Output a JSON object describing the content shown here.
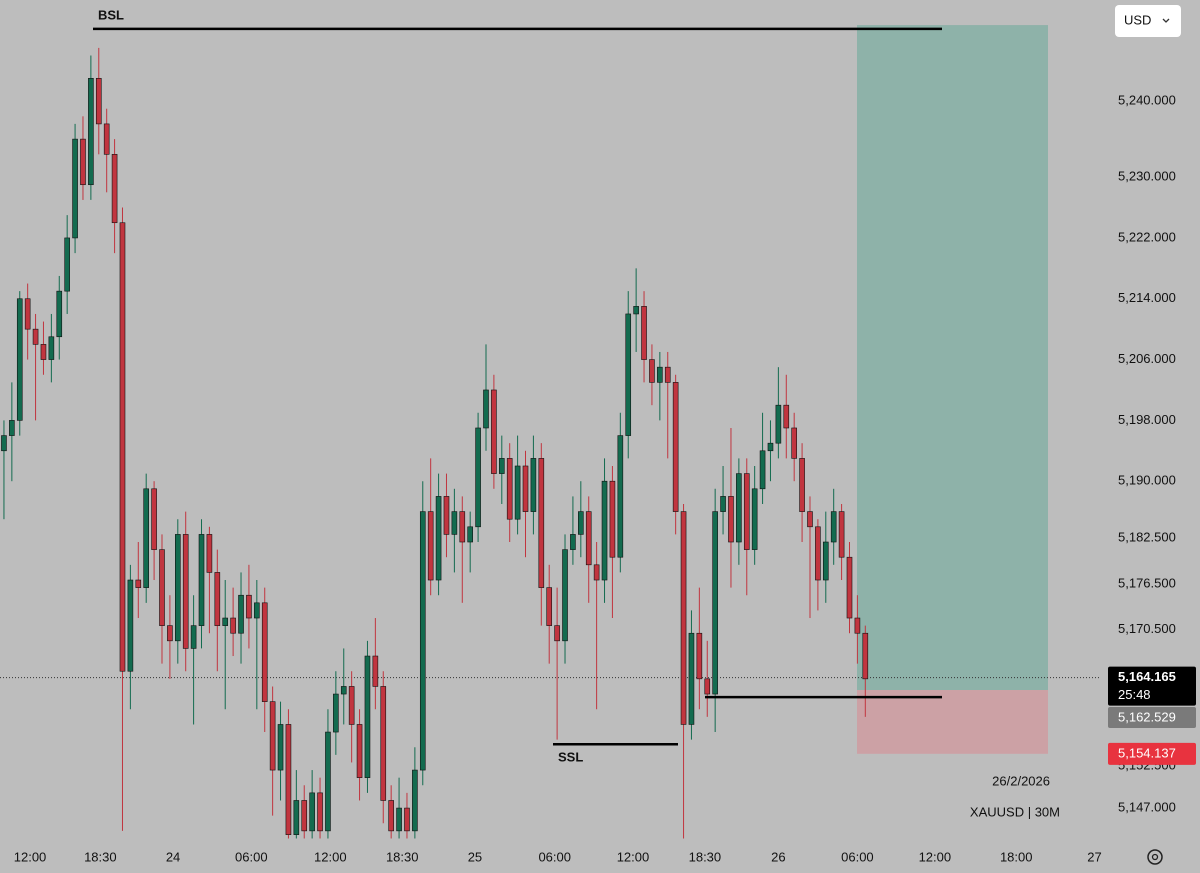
{
  "chart_data": {
    "type": "candlestick",
    "currency": "USD",
    "symbol": "XAUUSD | 30M",
    "date": "26/2/2026",
    "countdown": "25:48",
    "up_color": "#136b4f",
    "down_color": "#c1353f",
    "ylim": [
      5142.8,
      5253.3
    ],
    "yticks": [
      {
        "value": 5240,
        "label": "5,240.000"
      },
      {
        "value": 5230,
        "label": "5,230.000"
      },
      {
        "value": 5222,
        "label": "5,222.000"
      },
      {
        "value": 5214,
        "label": "5,214.000"
      },
      {
        "value": 5206,
        "label": "5,206.000"
      },
      {
        "value": 5198,
        "label": "5,198.000"
      },
      {
        "value": 5190,
        "label": "5,190.000"
      },
      {
        "value": 5182.5,
        "label": "5,182.500"
      },
      {
        "value": 5176.5,
        "label": "5,176.500"
      },
      {
        "value": 5170.5,
        "label": "5,170.500"
      },
      {
        "value": 5152.5,
        "label": "5,152.500"
      },
      {
        "value": 5147,
        "label": "5,147.000"
      }
    ],
    "xlim": [
      -0.5,
      138.7
    ],
    "xticks": [
      {
        "value": 3.3,
        "label": "12:00"
      },
      {
        "value": 12.2,
        "label": "18:30"
      },
      {
        "value": 21.4,
        "label": "24"
      },
      {
        "value": 31.3,
        "label": "06:00"
      },
      {
        "value": 41.3,
        "label": "12:00"
      },
      {
        "value": 50.4,
        "label": "18:30"
      },
      {
        "value": 59.6,
        "label": "25"
      },
      {
        "value": 69.7,
        "label": "06:00"
      },
      {
        "value": 79.6,
        "label": "12:00"
      },
      {
        "value": 88.7,
        "label": "18:30"
      },
      {
        "value": 98,
        "label": "26"
      },
      {
        "value": 108,
        "label": "06:00"
      },
      {
        "value": 117.8,
        "label": "12:00"
      },
      {
        "value": 128.1,
        "label": "18:00"
      },
      {
        "value": 138,
        "label": "27"
      }
    ],
    "candles": [
      [
        5194,
        5198,
        5185,
        5196
      ],
      [
        5196,
        5203,
        5190,
        5198
      ],
      [
        5198,
        5215,
        5196,
        5214
      ],
      [
        5214,
        5216,
        5206,
        5210
      ],
      [
        5210,
        5212,
        5198,
        5208
      ],
      [
        5208,
        5211,
        5204,
        5206
      ],
      [
        5206,
        5212,
        5203,
        5209
      ],
      [
        5209,
        5217,
        5206,
        5215
      ],
      [
        5215,
        5225,
        5212,
        5222
      ],
      [
        5222,
        5237,
        5220,
        5235
      ],
      [
        5235,
        5238,
        5227,
        5229
      ],
      [
        5229,
        5246,
        5227,
        5243
      ],
      [
        5243,
        5247,
        5233,
        5237
      ],
      [
        5237,
        5239,
        5228,
        5233
      ],
      [
        5233,
        5235,
        5220,
        5224
      ],
      [
        5224,
        5226,
        5144,
        5165
      ],
      [
        5165,
        5179,
        5160,
        5177
      ],
      [
        5177,
        5182,
        5172,
        5176
      ],
      [
        5176,
        5191,
        5174,
        5189
      ],
      [
        5189,
        5190,
        5177,
        5181
      ],
      [
        5181,
        5183,
        5166,
        5171
      ],
      [
        5171,
        5175,
        5164,
        5169
      ],
      [
        5169,
        5185,
        5166,
        5183
      ],
      [
        5183,
        5186,
        5165,
        5168
      ],
      [
        5168,
        5175,
        5158,
        5171
      ],
      [
        5171,
        5185,
        5168,
        5183
      ],
      [
        5183,
        5184,
        5170,
        5178
      ],
      [
        5178,
        5181,
        5165,
        5171
      ],
      [
        5171,
        5177,
        5160,
        5172
      ],
      [
        5172,
        5176,
        5167,
        5170
      ],
      [
        5170,
        5178,
        5166,
        5175
      ],
      [
        5175,
        5179,
        5168,
        5172
      ],
      [
        5172,
        5177,
        5160,
        5174
      ],
      [
        5174,
        5176,
        5157,
        5161
      ],
      [
        5161,
        5163,
        5146,
        5152
      ],
      [
        5152,
        5161,
        5148,
        5158
      ],
      [
        5158,
        5160,
        5143,
        5143.5
      ],
      [
        5143.5,
        5152,
        5143,
        5148
      ],
      [
        5148,
        5150,
        5143,
        5144
      ],
      [
        5144,
        5152,
        5143,
        5149
      ],
      [
        5149,
        5151,
        5143,
        5144
      ],
      [
        5144,
        5160,
        5143,
        5157
      ],
      [
        5157,
        5165,
        5154,
        5162
      ],
      [
        5162,
        5168,
        5158,
        5163
      ],
      [
        5163,
        5165,
        5153,
        5158
      ],
      [
        5158,
        5160,
        5148,
        5151
      ],
      [
        5151,
        5169,
        5149,
        5167
      ],
      [
        5167,
        5172,
        5160,
        5163
      ],
      [
        5163,
        5165,
        5145,
        5148
      ],
      [
        5148,
        5150,
        5143,
        5144
      ],
      [
        5144,
        5151,
        5143,
        5147
      ],
      [
        5147,
        5149,
        5143,
        5144
      ],
      [
        5144,
        5155,
        5143,
        5152
      ],
      [
        5152,
        5190,
        5150,
        5186
      ],
      [
        5186,
        5193,
        5175,
        5177
      ],
      [
        5177,
        5191,
        5175,
        5188
      ],
      [
        5188,
        5191,
        5180,
        5183
      ],
      [
        5183,
        5189,
        5178,
        5186
      ],
      [
        5186,
        5188,
        5174,
        5182
      ],
      [
        5182,
        5186,
        5178,
        5184
      ],
      [
        5184,
        5199,
        5182,
        5197
      ],
      [
        5197,
        5208,
        5194,
        5202
      ],
      [
        5202,
        5204,
        5189,
        5191
      ],
      [
        5191,
        5196,
        5187,
        5193
      ],
      [
        5193,
        5195,
        5182,
        5185
      ],
      [
        5185,
        5196,
        5183,
        5192
      ],
      [
        5192,
        5194,
        5180,
        5186
      ],
      [
        5186,
        5196,
        5183,
        5193
      ],
      [
        5193,
        5195,
        5171,
        5176
      ],
      [
        5176,
        5179,
        5166,
        5171
      ],
      [
        5171,
        5176,
        5156,
        5169
      ],
      [
        5169,
        5183,
        5166,
        5181
      ],
      [
        5181,
        5188,
        5179,
        5183
      ],
      [
        5183,
        5190,
        5180,
        5186
      ],
      [
        5186,
        5188,
        5174,
        5179
      ],
      [
        5179,
        5182,
        5160,
        5177
      ],
      [
        5177,
        5193,
        5174,
        5190
      ],
      [
        5190,
        5192,
        5172,
        5180
      ],
      [
        5180,
        5199,
        5178,
        5196
      ],
      [
        5196,
        5215,
        5193,
        5212
      ],
      [
        5212,
        5218,
        5207,
        5213
      ],
      [
        5213,
        5215,
        5203,
        5206
      ],
      [
        5206,
        5208,
        5200,
        5203
      ],
      [
        5203,
        5207,
        5198,
        5205
      ],
      [
        5205,
        5207,
        5193,
        5203
      ],
      [
        5203,
        5204,
        5183,
        5186
      ],
      [
        5186,
        5187,
        5143,
        5158
      ],
      [
        5158,
        5173,
        5156,
        5170
      ],
      [
        5170,
        5176,
        5160,
        5164
      ],
      [
        5164,
        5169,
        5159,
        5162
      ],
      [
        5162,
        5189,
        5157,
        5186
      ],
      [
        5186,
        5192,
        5183,
        5188
      ],
      [
        5188,
        5197,
        5176,
        5182
      ],
      [
        5182,
        5193,
        5179,
        5191
      ],
      [
        5191,
        5193,
        5175,
        5181
      ],
      [
        5181,
        5192,
        5179,
        5189
      ],
      [
        5189,
        5199,
        5187,
        5194
      ],
      [
        5194,
        5198,
        5190,
        5195
      ],
      [
        5195,
        5205,
        5193,
        5200
      ],
      [
        5200,
        5204,
        5193,
        5197
      ],
      [
        5197,
        5199,
        5190,
        5193
      ],
      [
        5193,
        5195,
        5182,
        5186
      ],
      [
        5186,
        5188,
        5172,
        5184
      ],
      [
        5184,
        5185,
        5173,
        5177
      ],
      [
        5177,
        5186,
        5174,
        5182
      ],
      [
        5182,
        5189,
        5179,
        5186
      ],
      [
        5186,
        5187,
        5177,
        5180
      ],
      [
        5180,
        5182,
        5170,
        5172
      ],
      [
        5172,
        5175,
        5166,
        5170
      ],
      [
        5170,
        5171,
        5159,
        5164
      ]
    ],
    "levels": [
      {
        "label": "BSL",
        "value": 5249.5
      },
      {
        "label": "SSL",
        "value": 5155.4
      },
      {
        "value": 5161.6
      }
    ],
    "position": {
      "target": 5250,
      "entry": {
        "value": 5162.529,
        "label": "5,162.529"
      },
      "stop": {
        "value": 5154.137,
        "label": "5,154.137"
      }
    },
    "current_price": {
      "value": 5164.165,
      "label": "5,164.165"
    }
  }
}
